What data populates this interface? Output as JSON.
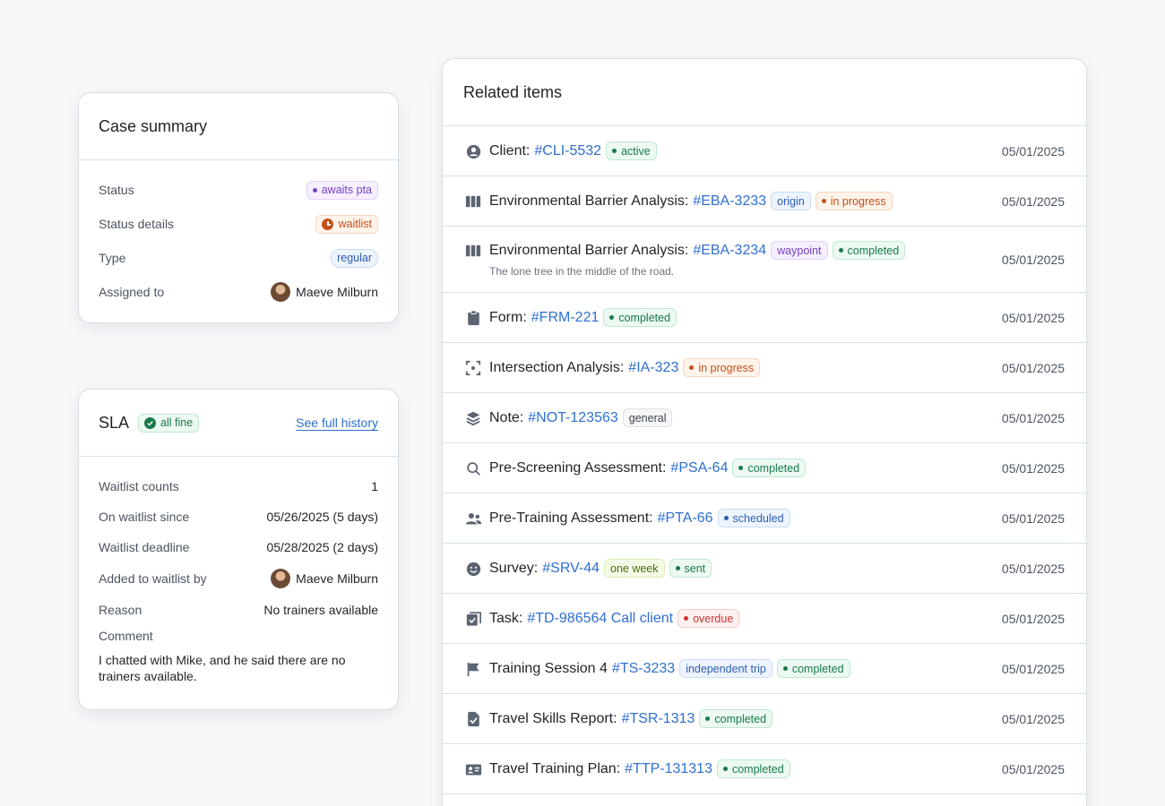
{
  "case_summary": {
    "title": "Case summary",
    "rows": [
      {
        "label": "Status",
        "value": "awaits pta"
      },
      {
        "label": "Status details",
        "value": "waitlist"
      },
      {
        "label": "Type",
        "value": "regular"
      },
      {
        "label": "Assigned to",
        "value": "Maeve Milburn"
      }
    ]
  },
  "sla": {
    "title": "SLA",
    "status_badge": "all fine",
    "history_link": "See full history",
    "rows": [
      {
        "label": "Waitlist counts",
        "value": "1"
      },
      {
        "label": "On waitlist since",
        "value": "05/26/2025 (5 days)"
      },
      {
        "label": "Waitlist deadline",
        "value": "05/28/2025 (2 days)"
      },
      {
        "label": "Added to waitlist by",
        "value": "Maeve Milburn"
      },
      {
        "label": "Reason",
        "value": "No trainers available"
      }
    ],
    "comment_label": "Comment",
    "comment_text": "I chatted with Mike, and he said there are no trainers available."
  },
  "related": {
    "title": "Related items",
    "items": [
      {
        "icon": "user-circle-icon",
        "name": "Client:",
        "id": "#CLI-5532",
        "badges": [
          {
            "text": "active",
            "style": "green",
            "dot": true
          }
        ],
        "date": "05/01/2025"
      },
      {
        "icon": "columns-icon",
        "name": "Environmental Barrier Analysis:",
        "id": "#EBA-3233",
        "badges": [
          {
            "text": "origin",
            "style": "blue",
            "dot": false
          },
          {
            "text": "in progress",
            "style": "orange",
            "dot": true
          }
        ],
        "date": "05/01/2025"
      },
      {
        "icon": "columns-icon",
        "name": "Environmental Barrier Analysis:",
        "id": "#EBA-3234",
        "badges": [
          {
            "text": "waypoint",
            "style": "purple",
            "dot": false
          },
          {
            "text": "completed",
            "style": "green",
            "dot": true
          }
        ],
        "sub": "The lone tree in the middle of the road.",
        "date": "05/01/2025"
      },
      {
        "icon": "clipboard-icon",
        "name": "Form:",
        "id": "#FRM-221",
        "badges": [
          {
            "text": "completed",
            "style": "green",
            "dot": true
          }
        ],
        "date": "05/01/2025"
      },
      {
        "icon": "focus-icon",
        "name": "Intersection Analysis:",
        "id": "#IA-323",
        "badges": [
          {
            "text": "in progress",
            "style": "orange",
            "dot": true
          }
        ],
        "date": "05/01/2025"
      },
      {
        "icon": "layers-icon",
        "name": "Note:",
        "id": "#NOT-123563",
        "badges": [
          {
            "text": "general",
            "style": "gray",
            "dot": false
          }
        ],
        "date": "05/01/2025"
      },
      {
        "icon": "search-icon",
        "name": "Pre-Screening Assessment:",
        "id": "#PSA-64",
        "badges": [
          {
            "text": "completed",
            "style": "green",
            "dot": true
          }
        ],
        "date": "05/01/2025"
      },
      {
        "icon": "users-icon",
        "name": "Pre-Training Assessment:",
        "id": "#PTA-66",
        "badges": [
          {
            "text": "scheduled",
            "style": "blue",
            "dot": true
          }
        ],
        "date": "05/01/2025"
      },
      {
        "icon": "smile-icon",
        "name": "Survey:",
        "id": "#SRV-44",
        "badges": [
          {
            "text": "one week",
            "style": "lime",
            "dot": false
          },
          {
            "text": "sent",
            "style": "green",
            "dot": true
          }
        ],
        "date": "05/01/2025"
      },
      {
        "icon": "task-icon",
        "name": "Task:",
        "id": "#TD-986564 Call client",
        "badges": [
          {
            "text": "overdue",
            "style": "red",
            "dot": true
          }
        ],
        "date": "05/01/2025"
      },
      {
        "icon": "flag-icon",
        "name": "Training Session 4",
        "id": "#TS-3233",
        "badges": [
          {
            "text": "independent trip",
            "style": "blue",
            "dot": false
          },
          {
            "text": "completed",
            "style": "green",
            "dot": true
          }
        ],
        "date": "05/01/2025"
      },
      {
        "icon": "report-icon",
        "name": "Travel Skills Report:",
        "id": "#TSR-1313",
        "badges": [
          {
            "text": "completed",
            "style": "green",
            "dot": true
          }
        ],
        "date": "05/01/2025"
      },
      {
        "icon": "id-card-icon",
        "name": "Travel Training Plan:",
        "id": "#TTP-131313",
        "badges": [
          {
            "text": "completed",
            "style": "green",
            "dot": true
          }
        ],
        "date": "05/01/2025"
      }
    ]
  }
}
